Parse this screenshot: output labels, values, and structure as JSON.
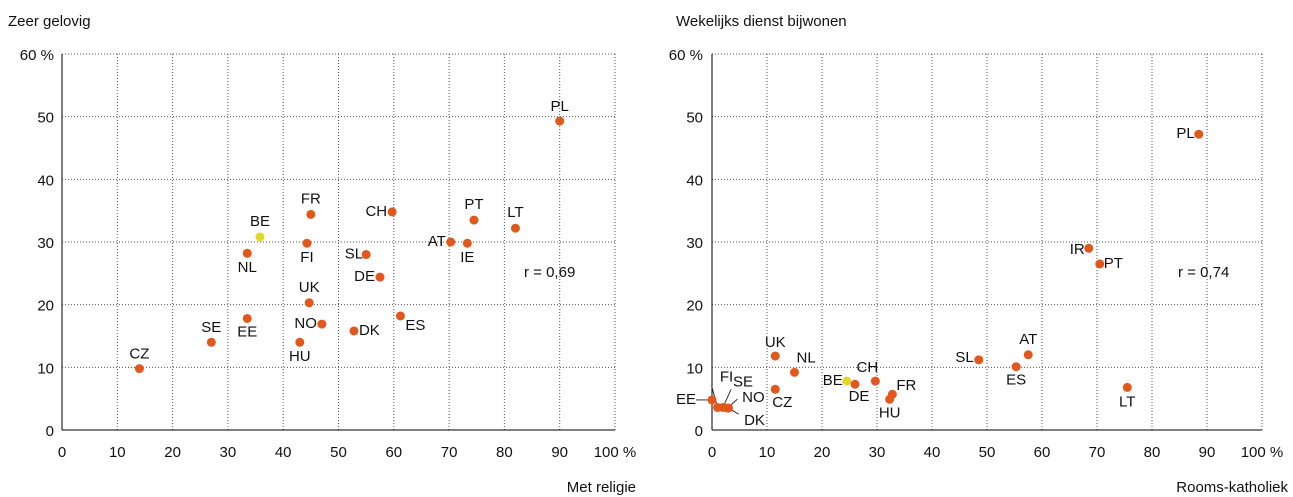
{
  "chart_data": [
    {
      "type": "scatter",
      "title": "Zeer gelovig",
      "xlabel": "Met religie",
      "annotation": "r = 0,69",
      "xlim": [
        0,
        100
      ],
      "ylim": [
        0,
        60
      ],
      "xticks": [
        0,
        10,
        20,
        30,
        40,
        50,
        60,
        70,
        80,
        90,
        {
          "value": 100,
          "label": "100 %"
        }
      ],
      "yticks": [
        0,
        10,
        20,
        30,
        40,
        50,
        {
          "value": 60,
          "label": "60 %"
        }
      ],
      "grid": true,
      "labels": [
        "PL",
        "CZ",
        "SE",
        "EE",
        "NL",
        "BE",
        "FR",
        "FI",
        "UK",
        "NO",
        "HU",
        "CH",
        "SL",
        "DE",
        "DK",
        "ES",
        "AT",
        "IE",
        "PT",
        "LT"
      ],
      "x": [
        90,
        14,
        27,
        33.5,
        33.5,
        35.8,
        45,
        44.3,
        44.7,
        47,
        43,
        59.7,
        55,
        57.5,
        52.8,
        61.2,
        70.3,
        73.3,
        74.5,
        82
      ],
      "values": [
        49.3,
        9.8,
        14,
        17.8,
        28.2,
        30.8,
        34.4,
        29.8,
        20.3,
        16.9,
        14,
        34.8,
        28,
        24.4,
        15.8,
        18.2,
        30,
        29.8,
        33.5,
        32.2
      ],
      "colors": [
        "#e2581c",
        "#e2581c",
        "#e2581c",
        "#e2581c",
        "#e2581c",
        "#e3d62a",
        "#e2581c",
        "#e2581c",
        "#e2581c",
        "#e2581c",
        "#e2581c",
        "#e2581c",
        "#e2581c",
        "#e2581c",
        "#e2581c",
        "#e2581c",
        "#e2581c",
        "#e2581c",
        "#e2581c",
        "#e2581c"
      ]
    },
    {
      "type": "scatter",
      "title": "Wekelijks dienst bijwonen",
      "xlabel": "Rooms-katholiek",
      "annotation": "r = 0,74",
      "xlim": [
        0,
        100
      ],
      "ylim": [
        0,
        60
      ],
      "xticks": [
        0,
        10,
        20,
        30,
        40,
        50,
        60,
        70,
        80,
        90,
        {
          "value": 100,
          "label": "100 %"
        }
      ],
      "yticks": [
        0,
        10,
        20,
        30,
        40,
        50,
        {
          "value": 60,
          "label": "60 %"
        }
      ],
      "grid": true,
      "labels": [
        "PL",
        "IR",
        "PT",
        "LT",
        "AT",
        "ES",
        "SL",
        "CH",
        "FR",
        "HU",
        "DE",
        "BE",
        "UK",
        "NL",
        "CZ",
        "FI",
        "SE",
        "NO",
        "EE",
        "DK"
      ],
      "x": [
        88.5,
        68.5,
        70.5,
        75.5,
        57.5,
        55.3,
        48.5,
        29.7,
        32.8,
        32.3,
        26,
        24.5,
        11.5,
        15,
        11.5,
        1,
        2,
        2.8,
        0,
        3
      ],
      "values": [
        47.2,
        29,
        26.5,
        6.8,
        12,
        10.1,
        11.2,
        7.8,
        5.7,
        4.9,
        7.3,
        7.8,
        11.8,
        9.2,
        6.5,
        3.6,
        3.6,
        3.5,
        4.8,
        3.5
      ],
      "colors": [
        "#e2581c",
        "#e2581c",
        "#e2581c",
        "#e2581c",
        "#e2581c",
        "#e2581c",
        "#e2581c",
        "#e2581c",
        "#e2581c",
        "#e2581c",
        "#e2581c",
        "#e3d62a",
        "#e2581c",
        "#e2581c",
        "#e2581c",
        "#e2581c",
        "#e2581c",
        "#e2581c",
        "#e2581c",
        "#e2581c"
      ]
    }
  ]
}
